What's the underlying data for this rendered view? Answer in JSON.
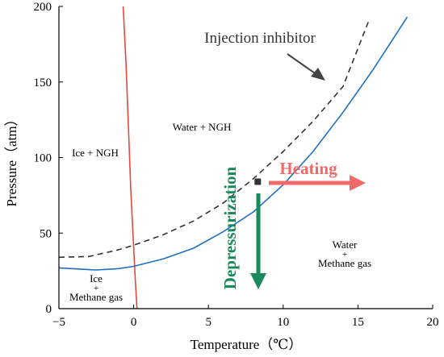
{
  "chart_data": {
    "type": "line",
    "xlabel": "Temperature（℃）",
    "ylabel": "Pressure（atm）",
    "xlim": [
      -5,
      20
    ],
    "ylim": [
      0,
      200
    ],
    "xticks": [
      -5,
      0,
      5,
      10,
      15,
      20
    ],
    "yticks": [
      0,
      50,
      100,
      150,
      200
    ],
    "grid": false,
    "legend": "none",
    "series": [
      {
        "color": "#e04a3f",
        "style": "solid",
        "x": [
          0.22,
          0.1,
          -0.05,
          -0.2,
          -0.35,
          -0.5,
          -0.7
        ],
        "y": [
          0,
          20,
          50,
          80,
          120,
          160,
          200
        ]
      },
      {
        "color": "#1f6fc0",
        "style": "solid",
        "x": [
          -5,
          -3,
          -2.5,
          -1,
          0,
          2,
          4,
          6,
          8,
          10,
          12,
          14,
          16,
          18.3
        ],
        "y": [
          27,
          25.8,
          25.6,
          26.5,
          28,
          33,
          40,
          51,
          64,
          82,
          104,
          130,
          158,
          193
        ]
      },
      {
        "color": "#333333",
        "style": "dashed",
        "x": [
          -5,
          -3,
          -1,
          0,
          2,
          4,
          6,
          8,
          10,
          12,
          14,
          15.7
        ],
        "y": [
          34,
          34.5,
          39,
          42,
          49,
          58,
          70,
          86,
          104,
          124,
          147,
          190
        ]
      }
    ],
    "annotations": {
      "injection": "Injection inhibitor",
      "water_ngh": "Water + NGH",
      "ice_ngh": "Ice + NGH",
      "water_methane_1": "Water",
      "water_methane_plus": "+",
      "water_methane_2": "Methane gas",
      "ice_methane_1": "Ice",
      "ice_methane_plus": "+",
      "ice_methane_2": "Methane gas",
      "heating": "Heating",
      "depressurization": "Depressurization"
    },
    "operating_point": {
      "x": 8.3,
      "y": 84
    },
    "colors": {
      "axis": "#000000",
      "heating": "#f06a6a",
      "depressurization": "#1a8a5a",
      "point": "#333333",
      "annotation_arrow": "#444444"
    }
  }
}
